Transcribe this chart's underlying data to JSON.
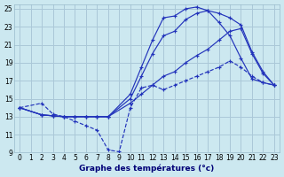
{
  "xlabel": "Graphe des températures (°c)",
  "xlim": [
    -0.5,
    23.5
  ],
  "ylim": [
    9,
    25.5
  ],
  "xticks": [
    0,
    1,
    2,
    3,
    4,
    5,
    6,
    7,
    8,
    9,
    10,
    11,
    12,
    13,
    14,
    15,
    16,
    17,
    18,
    19,
    20,
    21,
    22,
    23
  ],
  "yticks": [
    9,
    11,
    13,
    15,
    17,
    19,
    21,
    23,
    25
  ],
  "bg_color": "#cce8f0",
  "grid_color": "#aac8d8",
  "line_color": "#2233bb",
  "line1": {
    "x": [
      0,
      2,
      3,
      4,
      5,
      6,
      7,
      8,
      9,
      10,
      11,
      12,
      13,
      14,
      15,
      16,
      17,
      18,
      19,
      20,
      21,
      22,
      23
    ],
    "y": [
      14,
      14.5,
      13.3,
      13.0,
      12.5,
      12.0,
      11.5,
      9.3,
      9.1,
      14.0,
      16.2,
      16.5,
      16.0,
      16.5,
      17.0,
      17.5,
      18.0,
      18.5,
      19.2,
      18.5,
      17.5,
      16.8,
      16.5
    ],
    "ls": "--"
  },
  "line2": {
    "x": [
      0,
      2,
      3,
      4,
      5,
      6,
      7,
      8,
      10,
      11,
      12,
      13,
      14,
      15,
      16,
      17,
      18,
      19,
      20,
      21,
      22,
      23
    ],
    "y": [
      14,
      13.2,
      13.1,
      13.0,
      13.0,
      13.0,
      13.0,
      13.0,
      15.5,
      18.5,
      21.5,
      24.0,
      24.2,
      25.0,
      25.2,
      24.8,
      23.5,
      22.0,
      19.5,
      17.2,
      16.8,
      16.5
    ],
    "ls": "-"
  },
  "line3": {
    "x": [
      0,
      2,
      3,
      4,
      5,
      6,
      7,
      8,
      10,
      11,
      12,
      13,
      14,
      15,
      16,
      17,
      18,
      19,
      20,
      21,
      22,
      23
    ],
    "y": [
      14,
      13.2,
      13.1,
      13.0,
      13.0,
      13.0,
      13.0,
      13.0,
      15.0,
      17.5,
      20.0,
      22.0,
      22.5,
      23.8,
      24.5,
      24.8,
      24.5,
      24.0,
      23.2,
      20.2,
      18.0,
      16.5
    ],
    "ls": "-"
  },
  "line4": {
    "x": [
      0,
      2,
      3,
      4,
      5,
      6,
      7,
      8,
      10,
      11,
      12,
      13,
      14,
      15,
      16,
      17,
      18,
      19,
      20,
      21,
      22,
      23
    ],
    "y": [
      14,
      13.2,
      13.1,
      13.0,
      13.0,
      13.0,
      13.0,
      13.0,
      14.5,
      15.5,
      16.5,
      17.5,
      18.0,
      19.0,
      19.8,
      20.5,
      21.5,
      22.5,
      22.8,
      20.0,
      17.8,
      16.5
    ],
    "ls": "-"
  }
}
